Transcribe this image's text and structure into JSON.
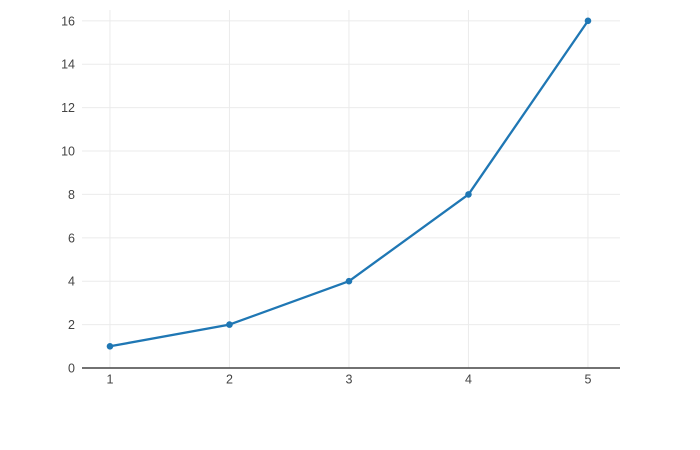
{
  "figure": {
    "background": "#ffffff"
  },
  "chart_data": {
    "type": "line",
    "title": "",
    "xlabel": "",
    "ylabel": "",
    "x": [
      1,
      2,
      3,
      4,
      5
    ],
    "y": [
      1,
      2,
      4,
      8,
      16
    ],
    "series": [
      {
        "name": "",
        "x": [
          1,
          2,
          3,
          4,
          5
        ],
        "values": [
          1,
          2,
          4,
          8,
          16
        ]
      }
    ],
    "x_ticks": [
      1,
      2,
      3,
      4,
      5
    ],
    "x_tick_labels": [
      "1",
      "2",
      "3",
      "4",
      "5"
    ],
    "y_ticks": [
      0,
      2,
      4,
      6,
      8,
      10,
      12,
      14,
      16
    ],
    "y_tick_labels": [
      "0",
      "2",
      "4",
      "6",
      "8",
      "10",
      "12",
      "14",
      "16"
    ],
    "xlim": [
      0.766,
      5.268
    ],
    "ylim": [
      0,
      16.5
    ],
    "grid": true,
    "legend": false,
    "line_color": "#1f77b4",
    "marker_color": "#1f77b4",
    "marker_radius": 3.3,
    "line_width": 2.3,
    "grid_color": "#ebebeb",
    "zeroline_color": "#444444",
    "tick_label_color": "#444444"
  }
}
